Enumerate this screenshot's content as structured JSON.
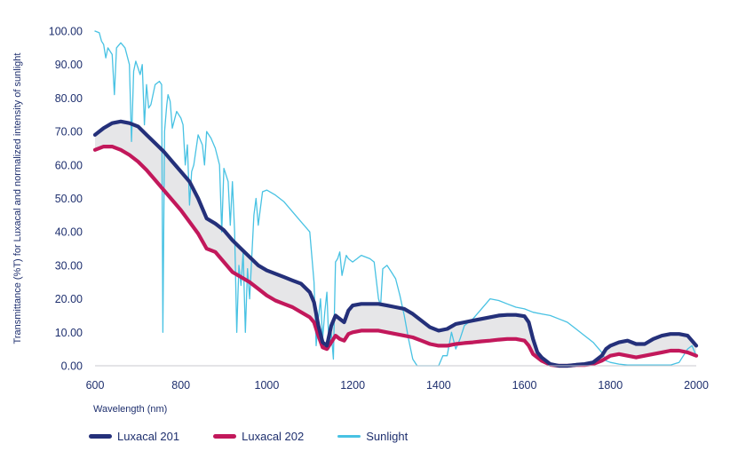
{
  "chart_data": {
    "type": "line",
    "title": "",
    "xlabel": "Wavelength (nm)",
    "ylabel": "Transmittance (%T) for Luxacal and normalized intensity of sunlight",
    "xlim": [
      600,
      2000
    ],
    "ylim": [
      0,
      100
    ],
    "x_ticks": [
      "600",
      "800",
      "1000",
      "1200",
      "1400",
      "1600",
      "1800",
      "2000"
    ],
    "y_ticks": [
      "0.00",
      "10.00",
      "20.00",
      "30.00",
      "40.00",
      "50.00",
      "60.00",
      "70.00",
      "80.00",
      "90.00",
      "100.00"
    ],
    "fill_between": [
      "Luxacal 201",
      "Luxacal 202"
    ],
    "fill_color": "#e6e6e8",
    "series": [
      {
        "name": "Luxacal 201",
        "color": "#24307a",
        "points": [
          [
            600,
            69
          ],
          [
            620,
            71
          ],
          [
            640,
            72.5
          ],
          [
            660,
            73
          ],
          [
            680,
            72.5
          ],
          [
            700,
            71.5
          ],
          [
            720,
            69
          ],
          [
            740,
            66.5
          ],
          [
            760,
            64
          ],
          [
            780,
            61
          ],
          [
            800,
            58
          ],
          [
            820,
            55
          ],
          [
            840,
            50
          ],
          [
            860,
            44
          ],
          [
            880,
            42.5
          ],
          [
            900,
            40.5
          ],
          [
            920,
            37.5
          ],
          [
            940,
            35
          ],
          [
            960,
            32.5
          ],
          [
            980,
            30
          ],
          [
            1000,
            28.5
          ],
          [
            1020,
            27.5
          ],
          [
            1040,
            26.5
          ],
          [
            1060,
            25.5
          ],
          [
            1080,
            24.5
          ],
          [
            1100,
            22
          ],
          [
            1110,
            19
          ],
          [
            1120,
            12
          ],
          [
            1130,
            7
          ],
          [
            1140,
            6
          ],
          [
            1150,
            12
          ],
          [
            1160,
            15
          ],
          [
            1170,
            14
          ],
          [
            1180,
            13
          ],
          [
            1190,
            16.5
          ],
          [
            1200,
            18
          ],
          [
            1220,
            18.5
          ],
          [
            1240,
            18.5
          ],
          [
            1260,
            18.5
          ],
          [
            1280,
            18
          ],
          [
            1300,
            17.5
          ],
          [
            1320,
            17
          ],
          [
            1340,
            15.5
          ],
          [
            1360,
            13.5
          ],
          [
            1380,
            11.5
          ],
          [
            1400,
            10.5
          ],
          [
            1420,
            11
          ],
          [
            1440,
            12.5
          ],
          [
            1460,
            13
          ],
          [
            1480,
            13.5
          ],
          [
            1500,
            14
          ],
          [
            1520,
            14.5
          ],
          [
            1540,
            15
          ],
          [
            1560,
            15.2
          ],
          [
            1580,
            15.2
          ],
          [
            1600,
            14.8
          ],
          [
            1610,
            13
          ],
          [
            1620,
            8
          ],
          [
            1630,
            4
          ],
          [
            1640,
            2.5
          ],
          [
            1660,
            0.5
          ],
          [
            1680,
            0
          ],
          [
            1700,
            0
          ],
          [
            1720,
            0.3
          ],
          [
            1740,
            0.5
          ],
          [
            1760,
            1
          ],
          [
            1780,
            3
          ],
          [
            1790,
            5
          ],
          [
            1800,
            6
          ],
          [
            1820,
            7
          ],
          [
            1840,
            7.5
          ],
          [
            1860,
            6.5
          ],
          [
            1880,
            6.5
          ],
          [
            1900,
            8
          ],
          [
            1920,
            9
          ],
          [
            1940,
            9.5
          ],
          [
            1960,
            9.5
          ],
          [
            1980,
            9
          ],
          [
            2000,
            6
          ]
        ]
      },
      {
        "name": "Luxacal 202",
        "color": "#c2185b",
        "points": [
          [
            600,
            64.5
          ],
          [
            620,
            65.5
          ],
          [
            640,
            65.5
          ],
          [
            660,
            64.5
          ],
          [
            680,
            63
          ],
          [
            700,
            61
          ],
          [
            720,
            58.5
          ],
          [
            740,
            55.5
          ],
          [
            760,
            52.5
          ],
          [
            780,
            49.5
          ],
          [
            800,
            46.5
          ],
          [
            820,
            43
          ],
          [
            840,
            39.5
          ],
          [
            860,
            35
          ],
          [
            880,
            34
          ],
          [
            900,
            31
          ],
          [
            920,
            28
          ],
          [
            940,
            26.5
          ],
          [
            960,
            25
          ],
          [
            980,
            23
          ],
          [
            1000,
            21
          ],
          [
            1020,
            19.5
          ],
          [
            1040,
            18.5
          ],
          [
            1060,
            17.5
          ],
          [
            1080,
            16
          ],
          [
            1100,
            14.5
          ],
          [
            1110,
            13
          ],
          [
            1120,
            9
          ],
          [
            1130,
            5.5
          ],
          [
            1140,
            5
          ],
          [
            1150,
            7
          ],
          [
            1160,
            9
          ],
          [
            1170,
            8
          ],
          [
            1180,
            7.5
          ],
          [
            1190,
            9.5
          ],
          [
            1200,
            10
          ],
          [
            1220,
            10.5
          ],
          [
            1240,
            10.5
          ],
          [
            1260,
            10.5
          ],
          [
            1280,
            10
          ],
          [
            1300,
            9.5
          ],
          [
            1320,
            9
          ],
          [
            1340,
            8.5
          ],
          [
            1360,
            7.5
          ],
          [
            1380,
            6.5
          ],
          [
            1400,
            6
          ],
          [
            1420,
            6
          ],
          [
            1440,
            6.5
          ],
          [
            1460,
            6.8
          ],
          [
            1480,
            7
          ],
          [
            1500,
            7.3
          ],
          [
            1520,
            7.5
          ],
          [
            1540,
            7.8
          ],
          [
            1560,
            8
          ],
          [
            1580,
            8
          ],
          [
            1600,
            7.5
          ],
          [
            1610,
            6
          ],
          [
            1620,
            3.5
          ],
          [
            1640,
            1.5
          ],
          [
            1660,
            0.3
          ],
          [
            1680,
            0
          ],
          [
            1700,
            0
          ],
          [
            1720,
            0.2
          ],
          [
            1740,
            0.2
          ],
          [
            1760,
            0.5
          ],
          [
            1780,
            1.5
          ],
          [
            1800,
            3
          ],
          [
            1820,
            3.5
          ],
          [
            1840,
            3
          ],
          [
            1860,
            2.5
          ],
          [
            1880,
            3
          ],
          [
            1900,
            3.5
          ],
          [
            1920,
            4
          ],
          [
            1940,
            4.5
          ],
          [
            1960,
            4.5
          ],
          [
            1980,
            4
          ],
          [
            2000,
            3
          ]
        ]
      },
      {
        "name": "Sunlight",
        "color": "#48c2e3",
        "points": [
          [
            600,
            100
          ],
          [
            610,
            99.5
          ],
          [
            615,
            97
          ],
          [
            620,
            96
          ],
          [
            625,
            92
          ],
          [
            630,
            95
          ],
          [
            635,
            94
          ],
          [
            640,
            93
          ],
          [
            645,
            81
          ],
          [
            650,
            95
          ],
          [
            660,
            96.5
          ],
          [
            670,
            95
          ],
          [
            680,
            90
          ],
          [
            685,
            67
          ],
          [
            690,
            88
          ],
          [
            695,
            91
          ],
          [
            700,
            89
          ],
          [
            705,
            87
          ],
          [
            710,
            90
          ],
          [
            715,
            72
          ],
          [
            720,
            84
          ],
          [
            725,
            77
          ],
          [
            730,
            78
          ],
          [
            740,
            84
          ],
          [
            750,
            85
          ],
          [
            755,
            84
          ],
          [
            758,
            10
          ],
          [
            762,
            70
          ],
          [
            767,
            78
          ],
          [
            770,
            81
          ],
          [
            775,
            79
          ],
          [
            780,
            71
          ],
          [
            790,
            76
          ],
          [
            800,
            74
          ],
          [
            805,
            72
          ],
          [
            810,
            60
          ],
          [
            815,
            66
          ],
          [
            820,
            48
          ],
          [
            825,
            58
          ],
          [
            830,
            60
          ],
          [
            840,
            69
          ],
          [
            850,
            66
          ],
          [
            855,
            60
          ],
          [
            860,
            70
          ],
          [
            870,
            68
          ],
          [
            880,
            65
          ],
          [
            890,
            60
          ],
          [
            895,
            40
          ],
          [
            900,
            59
          ],
          [
            910,
            55
          ],
          [
            915,
            42
          ],
          [
            920,
            55
          ],
          [
            925,
            40
          ],
          [
            930,
            10
          ],
          [
            935,
            30
          ],
          [
            940,
            24
          ],
          [
            945,
            34
          ],
          [
            950,
            10
          ],
          [
            955,
            29
          ],
          [
            960,
            20
          ],
          [
            970,
            45
          ],
          [
            975,
            50
          ],
          [
            980,
            42
          ],
          [
            990,
            52
          ],
          [
            1000,
            52.5
          ],
          [
            1020,
            51
          ],
          [
            1040,
            49
          ],
          [
            1060,
            46
          ],
          [
            1080,
            43
          ],
          [
            1100,
            40
          ],
          [
            1110,
            25
          ],
          [
            1115,
            6
          ],
          [
            1120,
            14
          ],
          [
            1125,
            20
          ],
          [
            1130,
            8
          ],
          [
            1135,
            16
          ],
          [
            1140,
            22
          ],
          [
            1145,
            5
          ],
          [
            1150,
            10
          ],
          [
            1155,
            2
          ],
          [
            1160,
            31
          ],
          [
            1165,
            32
          ],
          [
            1170,
            34
          ],
          [
            1175,
            27
          ],
          [
            1180,
            30
          ],
          [
            1185,
            33
          ],
          [
            1190,
            32
          ],
          [
            1200,
            31
          ],
          [
            1210,
            32
          ],
          [
            1220,
            33
          ],
          [
            1240,
            32
          ],
          [
            1250,
            31
          ],
          [
            1260,
            20
          ],
          [
            1265,
            18
          ],
          [
            1270,
            29
          ],
          [
            1280,
            30
          ],
          [
            1290,
            28
          ],
          [
            1300,
            26
          ],
          [
            1310,
            21
          ],
          [
            1320,
            15
          ],
          [
            1330,
            8
          ],
          [
            1340,
            2
          ],
          [
            1350,
            0
          ],
          [
            1370,
            0
          ],
          [
            1380,
            0
          ],
          [
            1400,
            0
          ],
          [
            1410,
            3
          ],
          [
            1420,
            3
          ],
          [
            1430,
            10
          ],
          [
            1440,
            5
          ],
          [
            1450,
            8
          ],
          [
            1460,
            12
          ],
          [
            1480,
            14
          ],
          [
            1500,
            17
          ],
          [
            1520,
            20
          ],
          [
            1540,
            19.5
          ],
          [
            1560,
            18.5
          ],
          [
            1580,
            17.5
          ],
          [
            1600,
            17
          ],
          [
            1620,
            16
          ],
          [
            1640,
            15.5
          ],
          [
            1660,
            15
          ],
          [
            1680,
            14
          ],
          [
            1700,
            13
          ],
          [
            1720,
            11
          ],
          [
            1740,
            9
          ],
          [
            1760,
            7
          ],
          [
            1780,
            4
          ],
          [
            1790,
            1.5
          ],
          [
            1800,
            1
          ],
          [
            1820,
            0.5
          ],
          [
            1840,
            0.2
          ],
          [
            1860,
            0.2
          ],
          [
            1880,
            0.2
          ],
          [
            1900,
            0.2
          ],
          [
            1920,
            0.2
          ],
          [
            1940,
            0.2
          ],
          [
            1960,
            1
          ],
          [
            1970,
            3
          ],
          [
            1980,
            5
          ],
          [
            1990,
            6
          ],
          [
            2000,
            3
          ]
        ]
      }
    ],
    "legend": [
      "Luxacal 201",
      "Luxacal 202",
      "Sunlight"
    ],
    "legend_position": "bottom",
    "grid": false
  }
}
